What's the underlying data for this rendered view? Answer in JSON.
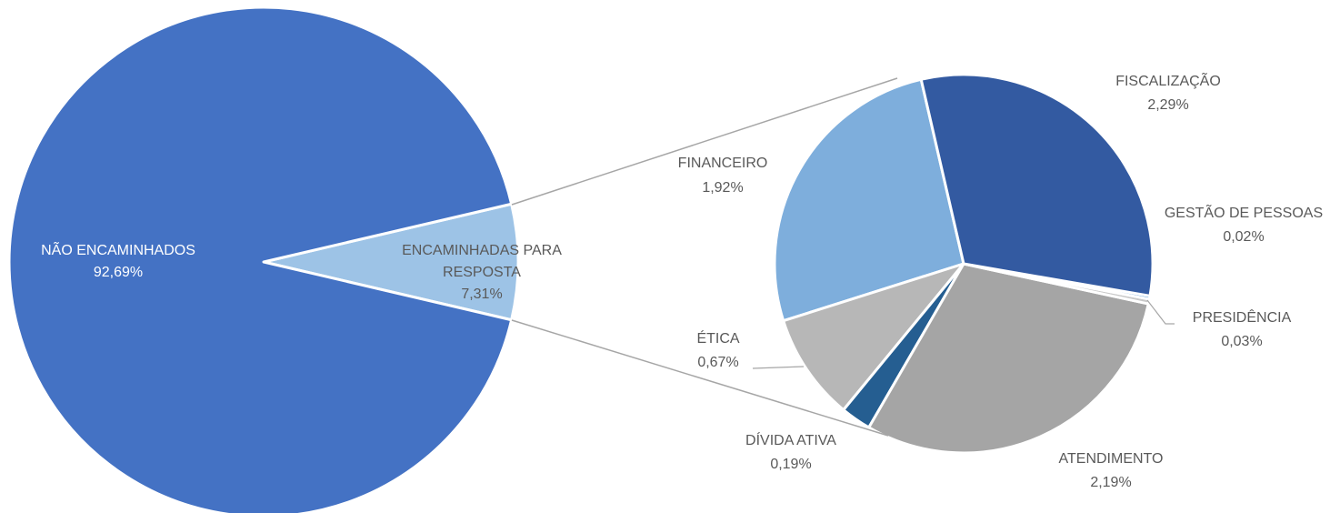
{
  "chart_data": [
    {
      "type": "pie",
      "categories": [
        "NÃO ENCAMINHADOS",
        "ENCAMINHADAS PARA RESPOSTA"
      ],
      "values": [
        92.69,
        7.31
      ],
      "value_labels": [
        "92,69%",
        "7,31%"
      ],
      "colors": [
        "#4472c4",
        "#9dc3e6"
      ]
    },
    {
      "type": "pie",
      "categories": [
        "FISCALIZAÇÃO",
        "GESTÃO DE PESSOAS",
        "PRESIDÊNCIA",
        "ATENDIMENTO",
        "DÍVIDA ATIVA",
        "ÉTICA",
        "FINANCEIRO"
      ],
      "values": [
        2.29,
        0.02,
        0.03,
        2.19,
        0.19,
        0.67,
        1.92
      ],
      "value_labels": [
        "2,29%",
        "0,02%",
        "0,03%",
        "2,19%",
        "0,19%",
        "0,67%",
        "1,92%"
      ],
      "colors": [
        "#335aa1",
        "#5b9bd5",
        "#c9c9c9",
        "#a5a5a5",
        "#255e91",
        "#b7b7b7",
        "#7eaedc"
      ]
    }
  ]
}
